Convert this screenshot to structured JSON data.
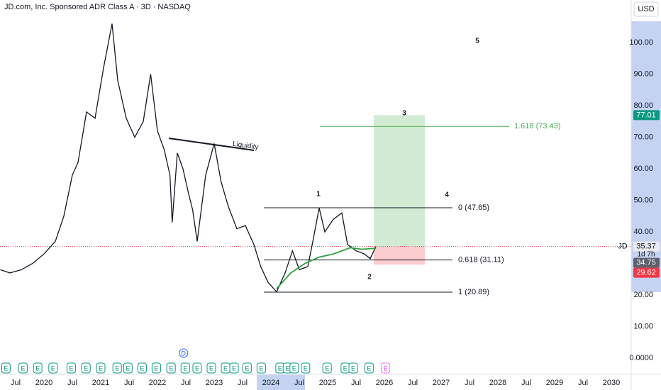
{
  "chart_data": {
    "type": "line",
    "title": "JD.com, Inc. Sponsored ADR Class A · 3D · NASDAQ",
    "currency": "USD",
    "symbol": "JD",
    "countdown": "1d 7h",
    "color": "#131722",
    "x": [
      2019.23,
      2019.4,
      2019.6,
      2019.8,
      2020.0,
      2020.2,
      2020.35,
      2020.5,
      2020.6,
      2020.75,
      2020.9,
      2021.05,
      2021.2,
      2021.3,
      2021.45,
      2021.6,
      2021.75,
      2021.88,
      2022.0,
      2022.12,
      2022.22,
      2022.26,
      2022.35,
      2022.45,
      2022.55,
      2022.62,
      2022.7,
      2022.85,
      2023.0,
      2023.12,
      2023.25,
      2023.4,
      2023.55,
      2023.7,
      2023.82,
      2023.95,
      2024.1,
      2024.25,
      2024.38,
      2024.5,
      2024.65,
      2024.75,
      2024.85,
      2024.95,
      2025.1,
      2025.25,
      2025.35,
      2025.5,
      2025.65,
      2025.75,
      2025.85
    ],
    "values": [
      28,
      27,
      28,
      30,
      33,
      37,
      45,
      58,
      62,
      78,
      76,
      92,
      106,
      88,
      76,
      70,
      75,
      90,
      72,
      66,
      58,
      43,
      65,
      60,
      52,
      47,
      37,
      58,
      68,
      56,
      48,
      41,
      42,
      36,
      29,
      24,
      21,
      27,
      34,
      28,
      29,
      38,
      47.6,
      40,
      44,
      46,
      36,
      34,
      33,
      31.5,
      35.37
    ],
    "overlay": {
      "color": "#2e9e3e",
      "x": [
        2024.1,
        2024.35,
        2024.6,
        2024.85,
        2025.1,
        2025.4,
        2025.6,
        2025.85
      ],
      "values": [
        22,
        27,
        30,
        32,
        33,
        35,
        34.5,
        34.8
      ]
    },
    "last_price": 35.37,
    "mark_price": 34.75,
    "position": {
      "target": 77.01,
      "entry": 35.37,
      "stop": 29.62
    },
    "fib_levels": [
      {
        "value": 47.65,
        "label": "0 (47.65)"
      },
      {
        "value": 31.11,
        "label": "0.618 (31.11)"
      },
      {
        "value": 20.89,
        "label": "1 (20.89)"
      }
    ],
    "extension": {
      "value": 73.43,
      "label": "1.618 (73.43)"
    },
    "trendline_label": "Liquidity",
    "waves": [
      "1",
      "2",
      "3",
      "4",
      "5"
    ],
    "events": [
      {
        "x": 2019.33,
        "label": "E"
      },
      {
        "x": 2019.63,
        "label": "E"
      },
      {
        "x": 2019.89,
        "label": "E"
      },
      {
        "x": 2020.16,
        "label": "E"
      },
      {
        "x": 2020.48,
        "label": "E"
      },
      {
        "x": 2020.74,
        "label": "E"
      },
      {
        "x": 2021.0,
        "label": "E"
      },
      {
        "x": 2021.29,
        "label": "E"
      },
      {
        "x": 2021.48,
        "label": "E"
      },
      {
        "x": 2021.73,
        "label": "E"
      },
      {
        "x": 2021.98,
        "label": "E"
      },
      {
        "x": 2022.24,
        "label": "E"
      },
      {
        "x": 2022.49,
        "label": "E"
      },
      {
        "x": 2022.7,
        "label": "E"
      },
      {
        "x": 2022.95,
        "label": "E"
      },
      {
        "x": 2023.2,
        "label": "E"
      },
      {
        "x": 2023.35,
        "label": "E"
      },
      {
        "x": 2023.58,
        "label": "E"
      },
      {
        "x": 2023.83,
        "label": "E"
      },
      {
        "x": 2024.16,
        "label": "E"
      },
      {
        "x": 2024.29,
        "label": "E"
      },
      {
        "x": 2024.41,
        "label": "E"
      },
      {
        "x": 2024.61,
        "label": "E"
      },
      {
        "x": 2024.99,
        "label": "E"
      },
      {
        "x": 2025.31,
        "label": "E"
      },
      {
        "x": 2025.45,
        "label": "E"
      },
      {
        "x": 2025.73,
        "label": "E"
      }
    ],
    "dividend": {
      "x": 2022.46,
      "label": "D"
    },
    "next_event": {
      "x": 2026.02,
      "label": "E"
    },
    "xlim": [
      2019.225,
      2030.35
    ],
    "ylim": [
      -4.5,
      113.5
    ],
    "yticks": [
      {
        "value": 0,
        "label": "0.0000"
      },
      {
        "value": 10,
        "label": "10.00"
      },
      {
        "value": 20,
        "label": "20.00"
      },
      {
        "value": 40,
        "label": "40.00"
      },
      {
        "value": 50,
        "label": "50.00"
      },
      {
        "value": 60,
        "label": "60.00"
      },
      {
        "value": 70,
        "label": "70.00"
      },
      {
        "value": 80,
        "label": "80.00"
      },
      {
        "value": 90,
        "label": "90.00"
      },
      {
        "value": 100,
        "label": "100.00"
      }
    ],
    "xticks": [
      {
        "value": 2019.5,
        "label": "Jul"
      },
      2020,
      {
        "value": 2020.5,
        "label": "Jul"
      },
      2021,
      {
        "value": 2021.5,
        "label": "Jul"
      },
      2022,
      {
        "value": 2022.5,
        "label": "Jul"
      },
      2023,
      {
        "value": 2023.5,
        "label": "Jul"
      },
      2024,
      {
        "value": 2024.5,
        "label": "Jul"
      },
      2025,
      {
        "value": 2025.5,
        "label": "Jul"
      },
      2026,
      {
        "value": 2026.5,
        "label": "Jul"
      },
      2027,
      {
        "value": 2027.5,
        "label": "Jul"
      },
      2028,
      {
        "value": 2028.5,
        "label": "Jul"
      },
      2029,
      {
        "value": 2029.5,
        "label": "Jul"
      },
      2030
    ]
  }
}
